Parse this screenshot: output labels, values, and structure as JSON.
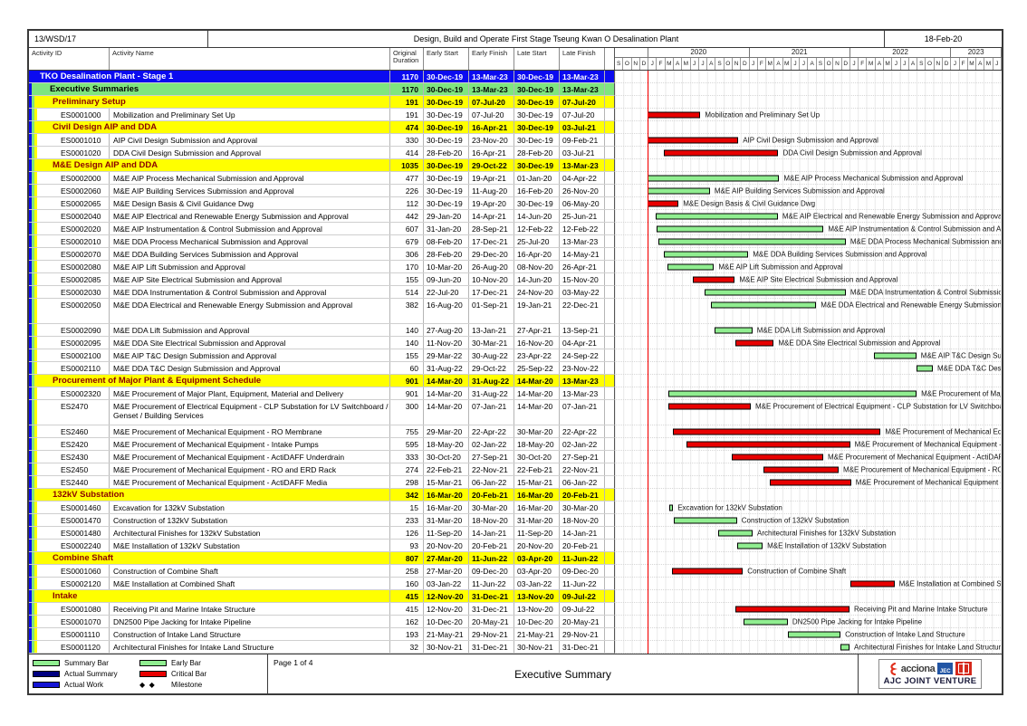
{
  "header": {
    "contract_no": "13/WSD/17",
    "project_title": "Design, Build and Operate First Stage Tseung Kwan O Desalination Plant",
    "run_date": "18-Feb-20"
  },
  "columns": {
    "activity_id": "Activity ID",
    "activity_name": "Activity Name",
    "original_duration": "Original Duration",
    "early_start": "Early Start",
    "early_finish": "Early Finish",
    "late_start": "Late Start",
    "late_finish": "Late Finish"
  },
  "colors": {
    "project_row": "#0b0bf0",
    "summary_row": "#7fe57f",
    "band_row": "#ffff00",
    "band_text": "#8b0000",
    "critical_bar": "#e80000",
    "early_bar": "#90ee90",
    "data_date_line": "#ff0000"
  },
  "chart_data": {
    "type": "bar",
    "variant": "gantt-schedule",
    "timeline": {
      "start": "Sep-2019",
      "end": "Jun-2023",
      "data_date": "30-Dec-19",
      "years": [
        {
          "label": "",
          "months": [
            "S",
            "O",
            "N",
            "D"
          ]
        },
        {
          "label": "2020",
          "months": [
            "J",
            "F",
            "M",
            "A",
            "M",
            "J",
            "J",
            "A",
            "S",
            "O",
            "N",
            "D"
          ]
        },
        {
          "label": "2021",
          "months": [
            "J",
            "F",
            "M",
            "A",
            "M",
            "J",
            "J",
            "A",
            "S",
            "O",
            "N",
            "D"
          ]
        },
        {
          "label": "2022",
          "months": [
            "J",
            "F",
            "M",
            "A",
            "M",
            "J",
            "J",
            "A",
            "S",
            "O",
            "N",
            "D"
          ]
        },
        {
          "label": "2023",
          "months": [
            "J",
            "F",
            "M",
            "A",
            "M",
            "J"
          ]
        }
      ]
    },
    "rows": [
      {
        "level": "project",
        "id": "",
        "name": "TKO Desalination Plant - Stage 1",
        "od": "1170",
        "es": "30-Dec-19",
        "ef": "13-Mar-23",
        "ls": "30-Dec-19",
        "lf": "13-Mar-23",
        "bar": "none"
      },
      {
        "level": "summary",
        "id": "",
        "name": "Executive Summaries",
        "od": "1170",
        "es": "30-Dec-19",
        "ef": "13-Mar-23",
        "ls": "30-Dec-19",
        "lf": "13-Mar-23",
        "bar": "none"
      },
      {
        "level": "band",
        "id": "",
        "name": "Preliminary Setup",
        "od": "191",
        "es": "30-Dec-19",
        "ef": "07-Jul-20",
        "ls": "30-Dec-19",
        "lf": "07-Jul-20",
        "bar": "none"
      },
      {
        "level": "activity",
        "id": "ES0001000",
        "name": "Mobilization and Preliminary Set Up",
        "od": "191",
        "es": "30-Dec-19",
        "ef": "07-Jul-20",
        "ls": "30-Dec-19",
        "lf": "07-Jul-20",
        "bar": "critical"
      },
      {
        "level": "band",
        "id": "",
        "name": "Civil Design AIP and DDA",
        "od": "474",
        "es": "30-Dec-19",
        "ef": "16-Apr-21",
        "ls": "30-Dec-19",
        "lf": "03-Jul-21",
        "bar": "none"
      },
      {
        "level": "activity",
        "id": "ES0001010",
        "name": "AIP Civil Design Submission and Approval",
        "od": "330",
        "es": "30-Dec-19",
        "ef": "23-Nov-20",
        "ls": "30-Dec-19",
        "lf": "09-Feb-21",
        "bar": "critical"
      },
      {
        "level": "activity",
        "id": "ES0001020",
        "name": "DDA Civil Design Submission and Approval",
        "od": "414",
        "es": "28-Feb-20",
        "ef": "16-Apr-21",
        "ls": "28-Feb-20",
        "lf": "03-Jul-21",
        "bar": "critical"
      },
      {
        "level": "band",
        "id": "",
        "name": "M&E Design AIP and DDA",
        "od": "1035",
        "es": "30-Dec-19",
        "ef": "29-Oct-22",
        "ls": "30-Dec-19",
        "lf": "13-Mar-23",
        "bar": "none"
      },
      {
        "level": "activity",
        "id": "ES0002000",
        "name": "M&E AIP Process Mechanical Submission and Approval",
        "od": "477",
        "es": "30-Dec-19",
        "ef": "19-Apr-21",
        "ls": "01-Jan-20",
        "lf": "04-Apr-22",
        "bar": "early"
      },
      {
        "level": "activity",
        "id": "ES0002060",
        "name": "M&E AIP Building Services Submission and Approval",
        "od": "226",
        "es": "30-Dec-19",
        "ef": "11-Aug-20",
        "ls": "16-Feb-20",
        "lf": "26-Nov-20",
        "bar": "early"
      },
      {
        "level": "activity",
        "id": "ES0002065",
        "name": "M&E Design Basis & Civil Guidance Dwg",
        "od": "112",
        "es": "30-Dec-19",
        "ef": "19-Apr-20",
        "ls": "30-Dec-19",
        "lf": "06-May-20",
        "bar": "critical"
      },
      {
        "level": "activity",
        "id": "ES0002040",
        "name": "M&E AIP Electrical and Renewable Energy Submission and Approval",
        "od": "442",
        "es": "29-Jan-20",
        "ef": "14-Apr-21",
        "ls": "14-Jun-20",
        "lf": "25-Jun-21",
        "bar": "early"
      },
      {
        "level": "activity",
        "id": "ES0002020",
        "name": "M&E AIP Instrumentation & Control Submission and Approval",
        "od": "607",
        "es": "31-Jan-20",
        "ef": "28-Sep-21",
        "ls": "12-Feb-22",
        "lf": "12-Feb-22",
        "bar": "early"
      },
      {
        "level": "activity",
        "id": "ES0002010",
        "name": "M&E DDA Process Mechanical Submission and Approval",
        "od": "679",
        "es": "08-Feb-20",
        "ef": "17-Dec-21",
        "ls": "25-Jul-20",
        "lf": "13-Mar-23",
        "bar": "early"
      },
      {
        "level": "activity",
        "id": "ES0002070",
        "name": "M&E DDA Building Services Submission and Approval",
        "od": "306",
        "es": "28-Feb-20",
        "ef": "29-Dec-20",
        "ls": "16-Apr-20",
        "lf": "14-May-21",
        "bar": "early"
      },
      {
        "level": "activity",
        "id": "ES0002080",
        "name": "M&E AIP Lift Submission and Approval",
        "od": "170",
        "es": "10-Mar-20",
        "ef": "26-Aug-20",
        "ls": "08-Nov-20",
        "lf": "26-Apr-21",
        "bar": "early"
      },
      {
        "level": "activity",
        "id": "ES0002085",
        "name": "M&E AIP Site Electrical Submission and Approval",
        "od": "155",
        "es": "09-Jun-20",
        "ef": "10-Nov-20",
        "ls": "14-Jun-20",
        "lf": "15-Nov-20",
        "bar": "critical"
      },
      {
        "level": "activity",
        "id": "ES0002030",
        "name": "M&E DDA Instrumentation & Control Submission and Approval",
        "od": "514",
        "es": "22-Jul-20",
        "ef": "17-Dec-21",
        "ls": "24-Nov-20",
        "lf": "03-May-22",
        "bar": "early"
      },
      {
        "level": "activity",
        "id": "ES0002050",
        "name": "M&E DDA Electrical and Renewable Energy Submission and Approval",
        "od": "382",
        "es": "16-Aug-20",
        "ef": "01-Sep-21",
        "ls": "19-Jan-21",
        "lf": "22-Dec-21",
        "bar": "early",
        "tall": true
      },
      {
        "level": "activity",
        "id": "ES0002090",
        "name": "M&E DDA Lift Submission and Approval",
        "od": "140",
        "es": "27-Aug-20",
        "ef": "13-Jan-21",
        "ls": "27-Apr-21",
        "lf": "13-Sep-21",
        "bar": "early"
      },
      {
        "level": "activity",
        "id": "ES0002095",
        "name": "M&E DDA Site Electrical Submission and Approval",
        "od": "140",
        "es": "11-Nov-20",
        "ef": "30-Mar-21",
        "ls": "16-Nov-20",
        "lf": "04-Apr-21",
        "bar": "critical"
      },
      {
        "level": "activity",
        "id": "ES0002100",
        "name": "M&E AIP T&C Design Submission and Approval",
        "od": "155",
        "es": "29-Mar-22",
        "ef": "30-Aug-22",
        "ls": "23-Apr-22",
        "lf": "24-Sep-22",
        "bar": "early"
      },
      {
        "level": "activity",
        "id": "ES0002110",
        "name": "M&E DDA T&C Design Submission and Approval",
        "od": "60",
        "es": "31-Aug-22",
        "ef": "29-Oct-22",
        "ls": "25-Sep-22",
        "lf": "23-Nov-22",
        "bar": "early"
      },
      {
        "level": "band",
        "id": "",
        "name": "Procurement of Major Plant & Equipment Schedule",
        "od": "901",
        "es": "14-Mar-20",
        "ef": "31-Aug-22",
        "ls": "14-Mar-20",
        "lf": "13-Mar-23",
        "bar": "none"
      },
      {
        "level": "activity",
        "id": "ES0002320",
        "name": "M&E Procurement of Major Plant, Equipment, Material and Delivery",
        "od": "901",
        "es": "14-Mar-20",
        "ef": "31-Aug-22",
        "ls": "14-Mar-20",
        "lf": "13-Mar-23",
        "bar": "early"
      },
      {
        "level": "activity",
        "id": "ES2470",
        "name": "M&E Procurement of Electrical Equipment - CLP Substation for LV Switchboard / Genset / Building Services",
        "od": "300",
        "es": "14-Mar-20",
        "ef": "07-Jan-21",
        "ls": "14-Mar-20",
        "lf": "07-Jan-21",
        "bar": "critical",
        "tall": true
      },
      {
        "level": "activity",
        "id": "ES2460",
        "name": "M&E Procurement of Mechanical Equipment - RO Membrane",
        "od": "755",
        "es": "29-Mar-20",
        "ef": "22-Apr-22",
        "ls": "30-Mar-20",
        "lf": "22-Apr-22",
        "bar": "critical"
      },
      {
        "level": "activity",
        "id": "ES2420",
        "name": "M&E Procurement of Mechanical Equipment - Intake Pumps",
        "od": "595",
        "es": "18-May-20",
        "ef": "02-Jan-22",
        "ls": "18-May-20",
        "lf": "02-Jan-22",
        "bar": "critical"
      },
      {
        "level": "activity",
        "id": "ES2430",
        "name": "M&E Procurement of Mechanical Equipment - ActiDAFF Underdrain",
        "od": "333",
        "es": "30-Oct-20",
        "ef": "27-Sep-21",
        "ls": "30-Oct-20",
        "lf": "27-Sep-21",
        "bar": "critical"
      },
      {
        "level": "activity",
        "id": "ES2450",
        "name": "M&E Procurement of Mechanical Equipment - RO and ERD Rack",
        "od": "274",
        "es": "22-Feb-21",
        "ef": "22-Nov-21",
        "ls": "22-Feb-21",
        "lf": "22-Nov-21",
        "bar": "critical"
      },
      {
        "level": "activity",
        "id": "ES2440",
        "name": "M&E Procurement of Mechanical Equipment - ActiDAFF Media",
        "od": "298",
        "es": "15-Mar-21",
        "ef": "06-Jan-22",
        "ls": "15-Mar-21",
        "lf": "06-Jan-22",
        "bar": "critical"
      },
      {
        "level": "band",
        "id": "",
        "name": "132kV Substation",
        "od": "342",
        "es": "16-Mar-20",
        "ef": "20-Feb-21",
        "ls": "16-Mar-20",
        "lf": "20-Feb-21",
        "bar": "none"
      },
      {
        "level": "activity",
        "id": "ES0001460",
        "name": "Excavation for 132kV Substation",
        "od": "15",
        "es": "16-Mar-20",
        "ef": "30-Mar-20",
        "ls": "16-Mar-20",
        "lf": "30-Mar-20",
        "bar": "early"
      },
      {
        "level": "activity",
        "id": "ES0001470",
        "name": "Construction of 132kV Substation",
        "od": "233",
        "es": "31-Mar-20",
        "ef": "18-Nov-20",
        "ls": "31-Mar-20",
        "lf": "18-Nov-20",
        "bar": "early"
      },
      {
        "level": "activity",
        "id": "ES0001480",
        "name": "Architectural Finishes for 132kV Substation",
        "od": "126",
        "es": "11-Sep-20",
        "ef": "14-Jan-21",
        "ls": "11-Sep-20",
        "lf": "14-Jan-21",
        "bar": "early"
      },
      {
        "level": "activity",
        "id": "ES0002240",
        "name": "M&E Installation of 132kV Substation",
        "od": "93",
        "es": "20-Nov-20",
        "ef": "20-Feb-21",
        "ls": "20-Nov-20",
        "lf": "20-Feb-21",
        "bar": "early"
      },
      {
        "level": "band",
        "id": "",
        "name": "Combine Shaft",
        "od": "807",
        "es": "27-Mar-20",
        "ef": "11-Jun-22",
        "ls": "03-Apr-20",
        "lf": "11-Jun-22",
        "bar": "none"
      },
      {
        "level": "activity",
        "id": "ES0001060",
        "name": "Construction of Combine Shaft",
        "od": "258",
        "es": "27-Mar-20",
        "ef": "09-Dec-20",
        "ls": "03-Apr-20",
        "lf": "09-Dec-20",
        "bar": "critical"
      },
      {
        "level": "activity",
        "id": "ES0002120",
        "name": "M&E Installation at Combined Shaft",
        "od": "160",
        "es": "03-Jan-22",
        "ef": "11-Jun-22",
        "ls": "03-Jan-22",
        "lf": "11-Jun-22",
        "bar": "critical"
      },
      {
        "level": "band",
        "id": "",
        "name": "Intake",
        "od": "415",
        "es": "12-Nov-20",
        "ef": "31-Dec-21",
        "ls": "13-Nov-20",
        "lf": "09-Jul-22",
        "bar": "none"
      },
      {
        "level": "activity",
        "id": "ES0001080",
        "name": "Receiving Pit and Marine Intake Structure",
        "od": "415",
        "es": "12-Nov-20",
        "ef": "31-Dec-21",
        "ls": "13-Nov-20",
        "lf": "09-Jul-22",
        "bar": "critical"
      },
      {
        "level": "activity",
        "id": "ES0001070",
        "name": "DN2500 Pipe Jacking for Intake Pipeline",
        "od": "162",
        "es": "10-Dec-20",
        "ef": "20-May-21",
        "ls": "10-Dec-20",
        "lf": "20-May-21",
        "bar": "early"
      },
      {
        "level": "activity",
        "id": "ES0001110",
        "name": "Construction of Intake Land Structure",
        "od": "193",
        "es": "21-May-21",
        "ef": "29-Nov-21",
        "ls": "21-May-21",
        "lf": "29-Nov-21",
        "bar": "early"
      },
      {
        "level": "activity",
        "id": "ES0001120",
        "name": "Architectural Finishes for Intake Land Structure",
        "od": "32",
        "es": "30-Nov-21",
        "ef": "31-Dec-21",
        "ls": "30-Nov-21",
        "lf": "31-Dec-21",
        "bar": "early"
      }
    ]
  },
  "legend": {
    "items": [
      {
        "label": "Summary Bar",
        "swatch": "summary"
      },
      {
        "label": "Early Bar",
        "swatch": "early"
      },
      {
        "label": "Actual Summary",
        "swatch": "actual-summary"
      },
      {
        "label": "Critical Bar",
        "swatch": "critical"
      },
      {
        "label": "Actual Work",
        "swatch": "actual-work"
      },
      {
        "label": "Milestone",
        "swatch": "milestone"
      }
    ]
  },
  "footer": {
    "page_label": "Page 1 of 4",
    "report_title": "Executive Summary",
    "logos": {
      "acciona": "acciona",
      "jec": "JEC",
      "cscec": "cscec-logo",
      "venture": "AJC JOINT VENTURE"
    }
  }
}
